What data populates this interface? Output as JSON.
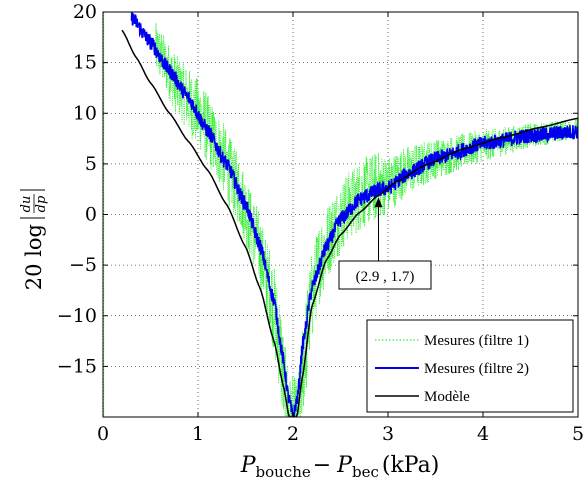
{
  "chart_data": {
    "type": "line",
    "title": "",
    "xlabel": {
      "main": "P",
      "sub1": "bouche",
      "minus": "−",
      "main2": "P",
      "sub2": "bec",
      "unit": "(kPa)"
    },
    "ylabel": {
      "prefix": "20 log",
      "numerator": "du",
      "denominator": "dp"
    },
    "xlim": [
      0,
      5
    ],
    "ylim": [
      -20,
      20
    ],
    "xticks": [
      0,
      1,
      2,
      3,
      4,
      5
    ],
    "xtick_labels": [
      "0",
      "1",
      "2",
      "3",
      "4",
      "5"
    ],
    "yticks": [
      -15,
      -10,
      -5,
      0,
      5,
      10,
      15,
      20
    ],
    "ytick_labels": [
      "−15",
      "−10",
      "−5",
      "0",
      "5",
      "10",
      "15",
      "20"
    ],
    "grid": true,
    "legend_position": "bottom-right",
    "series": [
      {
        "name": "Mesures (filtre 1)",
        "color": "#33ee33",
        "style": "dotted",
        "x": [
          0.55,
          0.8,
          1.0,
          1.2,
          1.4,
          1.6,
          1.75,
          1.85,
          1.92,
          1.97,
          2.05,
          2.12,
          2.2,
          2.3,
          2.45,
          2.6,
          2.75,
          2.9,
          3.0,
          3.2,
          3.5,
          4.0,
          4.5,
          5.0
        ],
        "y": [
          16.5,
          12.5,
          10.0,
          6.8,
          3.0,
          -2.0,
          -7.0,
          -12.0,
          -18.0,
          -20.0,
          -20.0,
          -14.0,
          -8.0,
          -4.0,
          -1.0,
          1.0,
          2.2,
          2.8,
          3.0,
          4.3,
          5.5,
          6.8,
          7.8,
          8.5
        ],
        "noise": [
          2.5,
          3.0,
          3.5,
          3.5,
          3.5,
          3.5,
          4.0,
          5.0,
          5.0,
          4.0,
          4.0,
          5.0,
          4.5,
          4.0,
          3.5,
          3.5,
          3.5,
          3.5,
          2.8,
          2.5,
          2.0,
          1.6,
          1.2,
          1.0
        ]
      },
      {
        "name": "Mesures (filtre 2)",
        "color": "#0000ee",
        "style": "solid",
        "x": [
          0.3,
          0.5,
          0.7,
          0.9,
          1.1,
          1.3,
          1.5,
          1.65,
          1.8,
          1.9,
          1.95,
          2.0,
          2.05,
          2.1,
          2.2,
          2.35,
          2.5,
          2.7,
          2.9,
          3.0,
          3.2,
          3.5,
          4.0,
          4.5,
          5.0
        ],
        "y": [
          19.5,
          17.0,
          14.2,
          11.5,
          8.3,
          5.0,
          1.0,
          -3.0,
          -8.5,
          -14.5,
          -18.0,
          -20.0,
          -18.0,
          -13.0,
          -7.2,
          -3.2,
          -0.5,
          1.5,
          2.4,
          2.6,
          4.0,
          5.5,
          7.0,
          7.8,
          8.2
        ]
      },
      {
        "name": "Modèle",
        "color": "#000000",
        "style": "solid",
        "x": [
          0.2,
          0.35,
          0.5,
          0.7,
          0.9,
          1.1,
          1.3,
          1.5,
          1.65,
          1.8,
          1.9,
          1.96,
          2.0,
          2.04,
          2.1,
          2.2,
          2.35,
          2.5,
          2.7,
          2.9,
          3.1,
          3.4,
          3.8,
          4.2,
          4.6,
          5.0
        ],
        "y": [
          18.2,
          15.5,
          13.0,
          10.0,
          7.2,
          4.4,
          1.0,
          -3.2,
          -7.2,
          -12.5,
          -17.0,
          -20.0,
          -20.0,
          -20.0,
          -16.0,
          -9.0,
          -4.5,
          -2.0,
          0.2,
          1.9,
          3.3,
          4.9,
          6.5,
          7.6,
          8.6,
          9.5
        ]
      }
    ],
    "annotation": {
      "text": "(2.9 , 1.7)",
      "x": 2.9,
      "y": 1.7
    }
  }
}
